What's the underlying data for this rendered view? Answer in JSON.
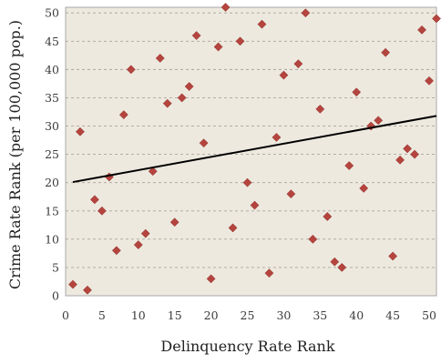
{
  "chart_data": {
    "type": "scatter",
    "xlabel": "Delinquency Rate Rank",
    "ylabel": "Crime Rate Rank (per 100,000 pop.)",
    "xlim": [
      0,
      51
    ],
    "ylim": [
      0,
      51
    ],
    "x_ticks": [
      "0",
      "5",
      "10",
      "15",
      "20",
      "25",
      "30",
      "35",
      "40",
      "45",
      "50"
    ],
    "y_ticks": [
      "0",
      "5",
      "10",
      "15",
      "20",
      "25",
      "30",
      "35",
      "40",
      "45",
      "50"
    ],
    "grid": "horizontal dashed",
    "plot_background": "#ede9df",
    "marker_color": "#b5443e",
    "trendline_color": "#000000",
    "points": [
      {
        "x": 1,
        "y": 2
      },
      {
        "x": 2,
        "y": 29
      },
      {
        "x": 3,
        "y": 1
      },
      {
        "x": 4,
        "y": 17
      },
      {
        "x": 5,
        "y": 15
      },
      {
        "x": 6,
        "y": 21
      },
      {
        "x": 7,
        "y": 8
      },
      {
        "x": 8,
        "y": 32
      },
      {
        "x": 9,
        "y": 40
      },
      {
        "x": 10,
        "y": 9
      },
      {
        "x": 11,
        "y": 11
      },
      {
        "x": 12,
        "y": 22
      },
      {
        "x": 13,
        "y": 42
      },
      {
        "x": 14,
        "y": 34
      },
      {
        "x": 15,
        "y": 13
      },
      {
        "x": 16,
        "y": 35
      },
      {
        "x": 17,
        "y": 37
      },
      {
        "x": 18,
        "y": 46
      },
      {
        "x": 19,
        "y": 27
      },
      {
        "x": 20,
        "y": 3
      },
      {
        "x": 21,
        "y": 44
      },
      {
        "x": 22,
        "y": 51
      },
      {
        "x": 23,
        "y": 12
      },
      {
        "x": 24,
        "y": 45
      },
      {
        "x": 25,
        "y": 20
      },
      {
        "x": 26,
        "y": 16
      },
      {
        "x": 27,
        "y": 48
      },
      {
        "x": 28,
        "y": 4
      },
      {
        "x": 29,
        "y": 28
      },
      {
        "x": 30,
        "y": 39
      },
      {
        "x": 31,
        "y": 18
      },
      {
        "x": 32,
        "y": 41
      },
      {
        "x": 33,
        "y": 50
      },
      {
        "x": 34,
        "y": 10
      },
      {
        "x": 35,
        "y": 33
      },
      {
        "x": 36,
        "y": 14
      },
      {
        "x": 37,
        "y": 6
      },
      {
        "x": 38,
        "y": 5
      },
      {
        "x": 39,
        "y": 23
      },
      {
        "x": 40,
        "y": 36
      },
      {
        "x": 41,
        "y": 19
      },
      {
        "x": 42,
        "y": 30
      },
      {
        "x": 43,
        "y": 31
      },
      {
        "x": 44,
        "y": 43
      },
      {
        "x": 45,
        "y": 7
      },
      {
        "x": 46,
        "y": 24
      },
      {
        "x": 47,
        "y": 26
      },
      {
        "x": 48,
        "y": 25
      },
      {
        "x": 49,
        "y": 47
      },
      {
        "x": 50,
        "y": 38
      },
      {
        "x": 51,
        "y": 49
      }
    ],
    "trendline": {
      "x": [
        1,
        51
      ],
      "y": [
        20.1,
        31.8
      ]
    }
  }
}
